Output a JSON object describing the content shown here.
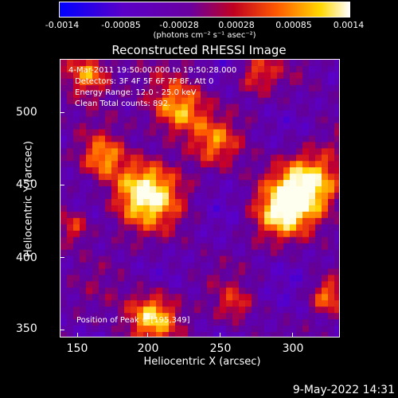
{
  "colorbar": {
    "ticks": [
      "-0.0014",
      "-0.00085",
      "-0.00028",
      "0.00028",
      "0.00085",
      "0.0014"
    ],
    "units": "(photons cm⁻² s⁻¹ asec⁻²)"
  },
  "title": "Reconstructed RHESSI Image",
  "annotations": {
    "time_range": "4-Mar-2011 19:50:00.000 to 19:50:28.000",
    "detectors": "Detectors: 3F 4F 5F 6F 7F 8F, Att 0",
    "energy": "Energy Range: 12.0 - 25.0 keV",
    "clean": "Clean     Total counts: 892.",
    "peak": "Position of Peak = [195,349]"
  },
  "axes": {
    "xlabel": "Heliocentric X (arcsec)",
    "ylabel": "Heliocentric Y (arcsec)",
    "xticks": [
      "150",
      "200",
      "250",
      "300"
    ],
    "yticks": [
      "350",
      "400",
      "450",
      "500"
    ]
  },
  "timestamp": "9-May-2022 14:31",
  "colors": {
    "background": "#000000",
    "hot": "#ffffff",
    "warm": "#ff6000",
    "cool": "#5a00a8",
    "cold": "#0000ff"
  }
}
